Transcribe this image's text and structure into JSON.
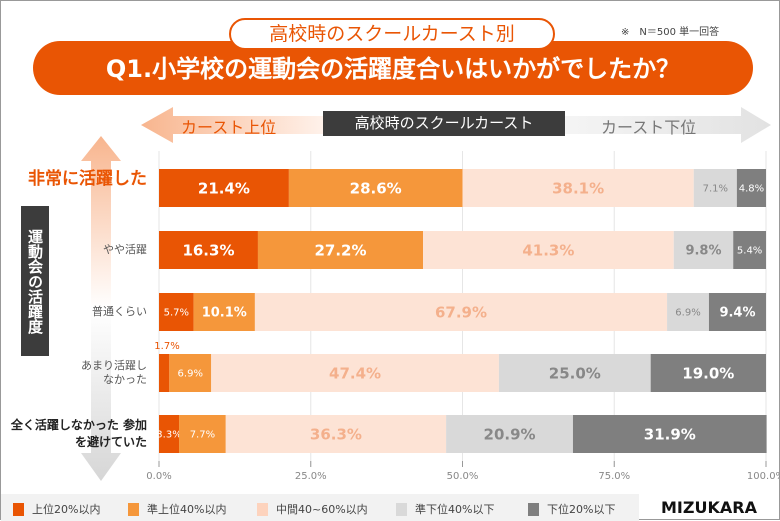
{
  "header": {
    "subtitle": "高校時のスクールカースト別",
    "title": "Q1.小学校の運動会の活躍度合いはいかがでしたか？",
    "note": "※　N＝500 単一回答"
  },
  "caste_axis": {
    "label": "高校時のスクールカースト",
    "high": "カースト上位",
    "low": "カースト下位"
  },
  "colors": [
    "#e95504",
    "#f5973b",
    "#fde3d5",
    "#d9d9d9",
    "#7f7f7f"
  ],
  "brand": "MIZUKARA",
  "chart_data": {
    "type": "bar",
    "orientation": "horizontal-stacked-100",
    "ylabel": "運動会の活躍度",
    "categories": [
      "非常に活躍した",
      "やや活躍",
      "普通くらい",
      "あまり活躍しなかった",
      "全く活躍しなかった 参加を避けていた"
    ],
    "series": [
      {
        "name": "上位20%以内",
        "values": [
          21.4,
          16.3,
          5.7,
          1.7,
          3.3
        ]
      },
      {
        "name": "準上位40%以内",
        "values": [
          28.6,
          27.2,
          10.1,
          6.9,
          7.7
        ]
      },
      {
        "name": "中間40~60%以内",
        "values": [
          38.1,
          41.3,
          67.9,
          47.4,
          36.3
        ]
      },
      {
        "name": "準下位40%以下",
        "values": [
          7.1,
          9.8,
          6.9,
          25.0,
          20.9
        ]
      },
      {
        "name": "下位20%以下",
        "values": [
          4.8,
          5.4,
          9.4,
          19.0,
          31.9
        ]
      }
    ],
    "xticks": [
      "0.0%",
      "25.0%",
      "50.0%",
      "75.0%",
      "100.0%"
    ],
    "xlim": [
      0,
      100
    ],
    "legend": "bottom"
  }
}
